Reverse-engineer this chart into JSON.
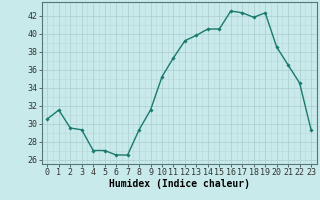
{
  "x": [
    0,
    1,
    2,
    3,
    4,
    5,
    6,
    7,
    8,
    9,
    10,
    11,
    12,
    13,
    14,
    15,
    16,
    17,
    18,
    19,
    20,
    21,
    22,
    23
  ],
  "y": [
    30.5,
    31.5,
    29.5,
    29.3,
    27.0,
    27.0,
    26.5,
    26.5,
    29.3,
    31.5,
    35.2,
    37.3,
    39.2,
    39.8,
    40.5,
    40.5,
    42.5,
    42.3,
    41.8,
    42.3,
    38.5,
    36.5,
    34.5,
    29.3
  ],
  "line_color": "#1a7a6e",
  "marker": "D",
  "markersize": 1.8,
  "linewidth": 1.0,
  "bg_color": "#c8eaea",
  "grid_color": "#aacccc",
  "grid_color_minor": "#bcd8d8",
  "xlabel": "Humidex (Indice chaleur)",
  "xlabel_fontsize": 7,
  "tick_fontsize": 6,
  "ylim": [
    25.5,
    43.5
  ],
  "xlim": [
    -0.5,
    23.5
  ],
  "yticks": [
    26,
    28,
    30,
    32,
    34,
    36,
    38,
    40,
    42
  ],
  "xticks": [
    0,
    1,
    2,
    3,
    4,
    5,
    6,
    7,
    8,
    9,
    10,
    11,
    12,
    13,
    14,
    15,
    16,
    17,
    18,
    19,
    20,
    21,
    22,
    23
  ]
}
